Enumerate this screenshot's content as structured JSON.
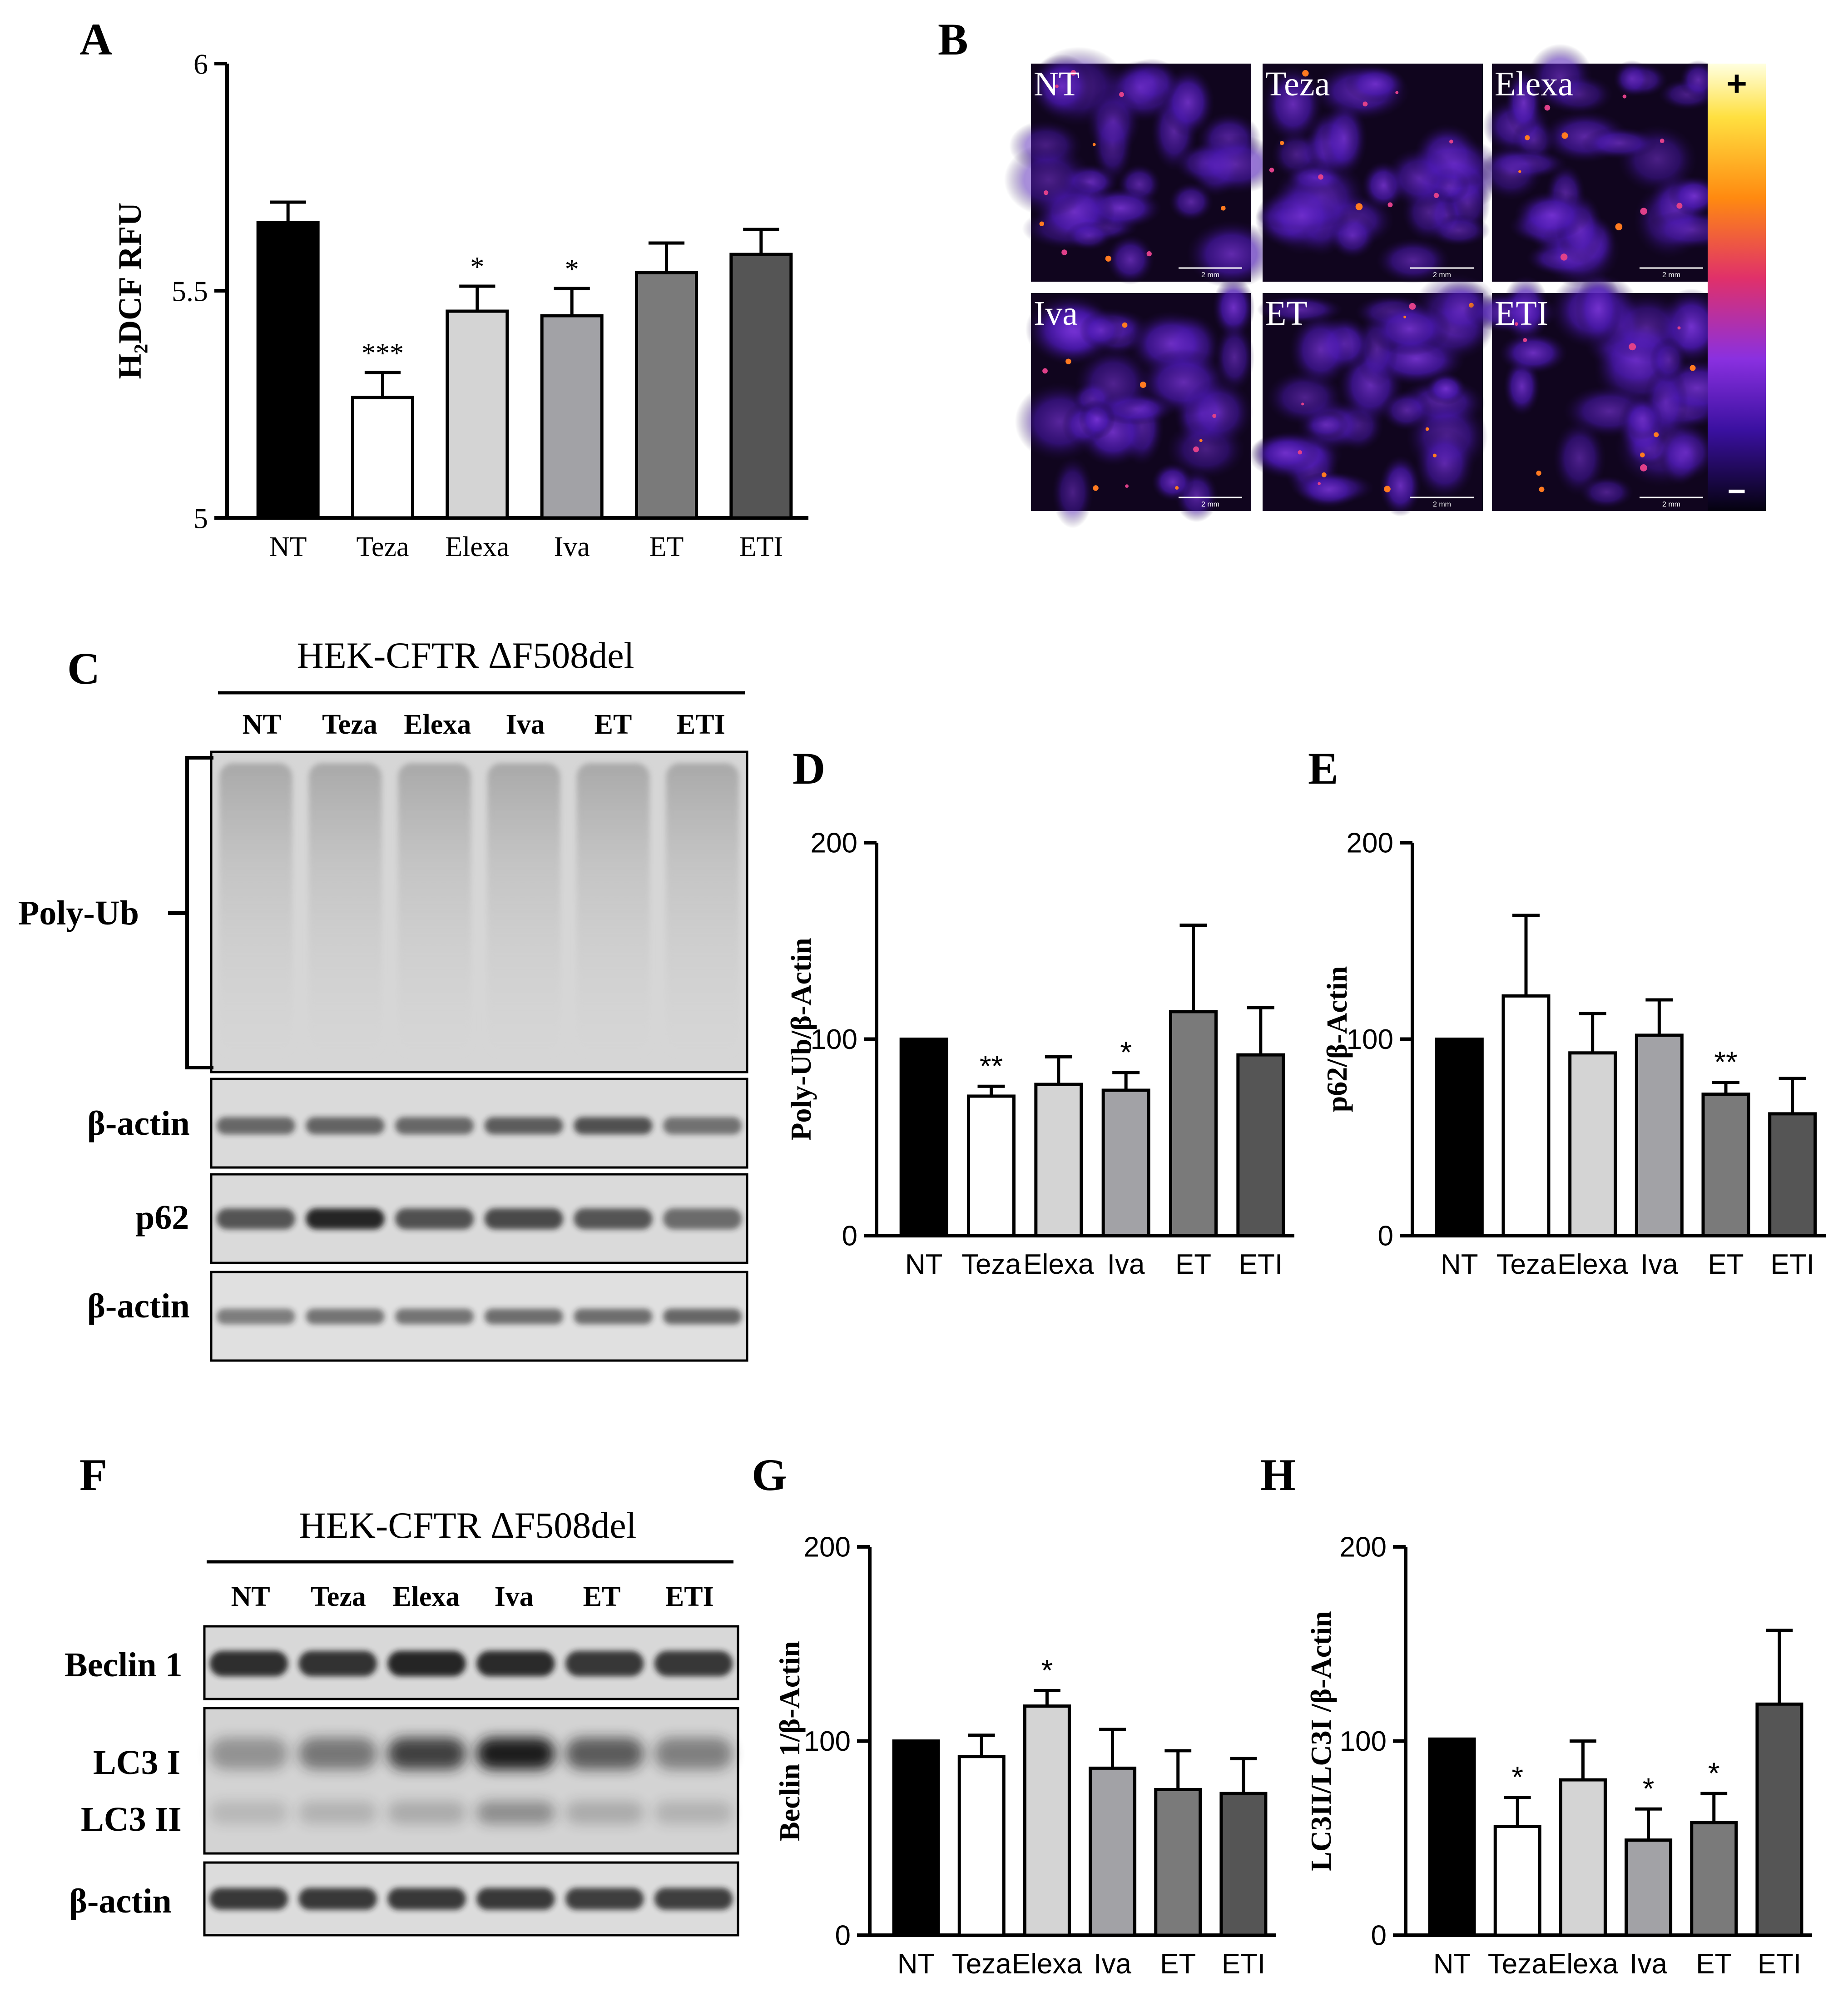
{
  "panels": {
    "A": {
      "letter": "A",
      "chart_data": {
        "type": "bar",
        "categories": [
          "NT",
          "Teza",
          "Elexa",
          "Iva",
          "ET",
          "ETI"
        ],
        "values": [
          5.65,
          5.265,
          5.455,
          5.445,
          5.54,
          5.58
        ],
        "errors": [
          0.045,
          0.055,
          0.055,
          0.06,
          0.065,
          0.055
        ],
        "significance": [
          "",
          "***",
          "*",
          "*",
          "",
          ""
        ],
        "ylabel": "H₂DCF RFU",
        "ylim": [
          5,
          6
        ],
        "yticks": [
          "5",
          "5.5",
          "6"
        ],
        "ytick_values": [
          5,
          5.5,
          6
        ]
      }
    },
    "B": {
      "letter": "B",
      "images": [
        "NT",
        "Teza",
        "Elexa",
        "Iva",
        "ET",
        "ETI"
      ],
      "scale_bar": "2 mm",
      "colorbar_max": "+",
      "colorbar_min": "−"
    },
    "C": {
      "letter": "C",
      "cell_line": "HEK-CFTR ΔF508del",
      "lanes": [
        "NT",
        "Teza",
        "Elexa",
        "Iva",
        "ET",
        "ETI"
      ],
      "blot_labels": [
        "Poly-Ub",
        "β-actin",
        "p62",
        "β-actin"
      ],
      "p62_intensity": [
        0.7,
        0.95,
        0.72,
        0.76,
        0.7,
        0.58
      ]
    },
    "D": {
      "letter": "D",
      "chart_data": {
        "type": "bar",
        "categories": [
          "NT",
          "Teza",
          "Elexa",
          "Iva",
          "ET",
          "ETI"
        ],
        "values": [
          100,
          71,
          77,
          74,
          114,
          92
        ],
        "errors": [
          0,
          5,
          14,
          9,
          44,
          24
        ],
        "significance": [
          "",
          "**",
          "",
          "*",
          "",
          ""
        ],
        "ylabel": "Poly-Ub/β-Actin",
        "ylim": [
          0,
          200
        ],
        "yticks": [
          "0",
          "100",
          "200"
        ],
        "ytick_values": [
          0,
          100,
          200
        ]
      }
    },
    "E": {
      "letter": "E",
      "chart_data": {
        "type": "bar",
        "categories": [
          "NT",
          "Teza",
          "Elexa",
          "Iva",
          "ET",
          "ETI"
        ],
        "values": [
          100,
          122,
          93,
          102,
          72,
          62
        ],
        "errors": [
          0,
          41,
          20,
          18,
          6,
          18
        ],
        "significance": [
          "",
          "",
          "",
          "",
          "**",
          ""
        ],
        "ylabel": "p62/β-Actin",
        "ylim": [
          0,
          200
        ],
        "yticks": [
          "0",
          "100",
          "200"
        ],
        "ytick_values": [
          0,
          100,
          200
        ]
      }
    },
    "F": {
      "letter": "F",
      "cell_line": "HEK-CFTR ΔF508del",
      "lanes": [
        "NT",
        "Teza",
        "Elexa",
        "Iva",
        "ET",
        "ETI"
      ],
      "blot_labels": [
        "Beclin 1",
        "LC3 I",
        "LC3 II",
        "β-actin"
      ],
      "lc3i_intensity": [
        0.35,
        0.5,
        0.8,
        1.0,
        0.65,
        0.45
      ]
    },
    "G": {
      "letter": "G",
      "chart_data": {
        "type": "bar",
        "categories": [
          "NT",
          "Teza",
          "Elexa",
          "Iva",
          "ET",
          "ETI"
        ],
        "values": [
          100,
          92,
          118,
          86,
          75,
          73
        ],
        "errors": [
          0,
          11,
          8,
          20,
          20,
          18
        ],
        "significance": [
          "",
          "",
          "*",
          "",
          "",
          ""
        ],
        "ylabel": "Beclin 1/β-Actin",
        "ylim": [
          0,
          200
        ],
        "yticks": [
          "0",
          "100",
          "200"
        ],
        "ytick_values": [
          0,
          100,
          200
        ]
      }
    },
    "H": {
      "letter": "H",
      "chart_data": {
        "type": "bar",
        "categories": [
          "NT",
          "Teza",
          "Elexa",
          "Iva",
          "ET",
          "ETI"
        ],
        "values": [
          101,
          56,
          80,
          49,
          58,
          119
        ],
        "errors": [
          0,
          15,
          20,
          16,
          15,
          38
        ],
        "significance": [
          "",
          "*",
          "",
          "*",
          "*",
          ""
        ],
        "ylabel": "LC3II/LC3I /β-Actin",
        "ylim": [
          0,
          200
        ],
        "yticks": [
          "0",
          "100",
          "200"
        ],
        "ytick_values": [
          0,
          100,
          200
        ]
      }
    }
  },
  "colors": {
    "bars": [
      "#000000",
      "#ffffff",
      "#d4d4d4",
      "#a2a2a6",
      "#7a7a7a",
      "#555555"
    ],
    "blot_background": "#dcdcdc",
    "band": "#1c1c1c"
  }
}
